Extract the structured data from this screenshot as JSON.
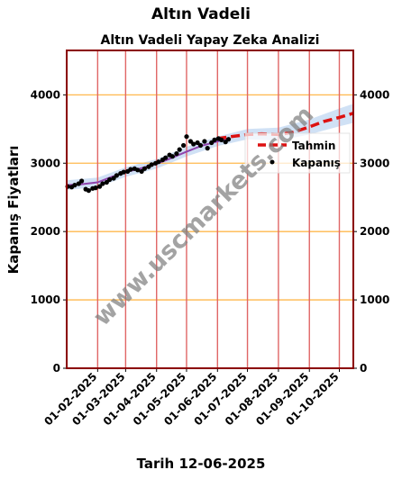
{
  "page": {
    "title": "Altın Vadeli",
    "footer": "Tarih 12-06-2025"
  },
  "watermark": "www.uscmarkets.com",
  "colors": {
    "frame": "#8b0000",
    "vertical_grid": "#e06666",
    "horizontal_grid": "#ffb84d",
    "close_points": "#000000",
    "fit_line": "#8e44ad",
    "band": "#a9c8ec",
    "forecast": "#dd1111"
  },
  "chart_data": {
    "type": "line",
    "title": "Altın Vadeli Yapay Zeka Analizi",
    "xlabel": "",
    "ylabel": "Kapanış Fiyatları",
    "ylim": [
      0,
      4650
    ],
    "y_ticks": [
      0,
      1000,
      2000,
      3000,
      4000
    ],
    "x_range": [
      "2025-01-01",
      "2025-10-15"
    ],
    "x_ticks": [
      "01-02-2025",
      "01-03-2025",
      "01-04-2025",
      "01-05-2025",
      "01-06-2025",
      "01-07-2025",
      "01-08-2025",
      "01-09-2025",
      "01-10-2025"
    ],
    "grid": true,
    "legend_position": "right",
    "legend": [
      "Tahmin",
      "Kapanış"
    ],
    "series": [
      {
        "name": "Kapanış",
        "kind": "scatter",
        "points": [
          [
            "2025-01-02",
            2660
          ],
          [
            "2025-01-06",
            2650
          ],
          [
            "2025-01-09",
            2680
          ],
          [
            "2025-01-13",
            2700
          ],
          [
            "2025-01-16",
            2740
          ],
          [
            "2025-01-20",
            2620
          ],
          [
            "2025-01-23",
            2600
          ],
          [
            "2025-01-27",
            2630
          ],
          [
            "2025-01-30",
            2640
          ],
          [
            "2025-02-03",
            2660
          ],
          [
            "2025-02-06",
            2700
          ],
          [
            "2025-02-10",
            2720
          ],
          [
            "2025-02-13",
            2760
          ],
          [
            "2025-02-17",
            2780
          ],
          [
            "2025-02-20",
            2820
          ],
          [
            "2025-02-24",
            2850
          ],
          [
            "2025-02-27",
            2870
          ],
          [
            "2025-03-03",
            2880
          ],
          [
            "2025-03-06",
            2910
          ],
          [
            "2025-03-10",
            2920
          ],
          [
            "2025-03-13",
            2900
          ],
          [
            "2025-03-17",
            2880
          ],
          [
            "2025-03-20",
            2920
          ],
          [
            "2025-03-24",
            2950
          ],
          [
            "2025-03-27",
            2980
          ],
          [
            "2025-03-31",
            3000
          ],
          [
            "2025-04-03",
            3020
          ],
          [
            "2025-04-07",
            3050
          ],
          [
            "2025-04-10",
            3080
          ],
          [
            "2025-04-14",
            3120
          ],
          [
            "2025-04-17",
            3100
          ],
          [
            "2025-04-21",
            3140
          ],
          [
            "2025-04-24",
            3200
          ],
          [
            "2025-04-28",
            3260
          ],
          [
            "2025-05-01",
            3390
          ],
          [
            "2025-05-05",
            3320
          ],
          [
            "2025-05-08",
            3280
          ],
          [
            "2025-05-12",
            3300
          ],
          [
            "2025-05-15",
            3260
          ],
          [
            "2025-05-19",
            3320
          ],
          [
            "2025-05-22",
            3220
          ],
          [
            "2025-05-26",
            3300
          ],
          [
            "2025-05-29",
            3340
          ],
          [
            "2025-06-02",
            3360
          ],
          [
            "2025-06-05",
            3340
          ],
          [
            "2025-06-09",
            3310
          ],
          [
            "2025-06-12",
            3350
          ]
        ]
      },
      {
        "name": "fit",
        "kind": "line",
        "points": [
          [
            "2025-01-01",
            2680
          ],
          [
            "2025-01-15",
            2690
          ],
          [
            "2025-02-01",
            2720
          ],
          [
            "2025-02-15",
            2800
          ],
          [
            "2025-03-01",
            2870
          ],
          [
            "2025-03-15",
            2920
          ],
          [
            "2025-04-01",
            2990
          ],
          [
            "2025-04-15",
            3070
          ],
          [
            "2025-05-01",
            3170
          ],
          [
            "2025-05-15",
            3250
          ],
          [
            "2025-06-01",
            3320
          ],
          [
            "2025-06-12",
            3360
          ]
        ]
      },
      {
        "name": "Tahmin",
        "kind": "dashed",
        "points": [
          [
            "2025-06-01",
            3360
          ],
          [
            "2025-06-15",
            3390
          ],
          [
            "2025-07-01",
            3420
          ],
          [
            "2025-07-15",
            3430
          ],
          [
            "2025-08-01",
            3420
          ],
          [
            "2025-08-15",
            3450
          ],
          [
            "2025-09-01",
            3530
          ],
          [
            "2025-09-15",
            3610
          ],
          [
            "2025-10-01",
            3670
          ],
          [
            "2025-10-15",
            3730
          ]
        ]
      },
      {
        "name": "band",
        "kind": "band",
        "points": [
          [
            "2025-01-01",
            2610,
            2750
          ],
          [
            "2025-02-01",
            2650,
            2790
          ],
          [
            "2025-03-01",
            2800,
            2940
          ],
          [
            "2025-04-01",
            2920,
            3060
          ],
          [
            "2025-05-01",
            3100,
            3240
          ],
          [
            "2025-06-01",
            3250,
            3390
          ],
          [
            "2025-07-01",
            3350,
            3500
          ],
          [
            "2025-08-01",
            3330,
            3520
          ],
          [
            "2025-09-01",
            3420,
            3640
          ],
          [
            "2025-10-01",
            3540,
            3800
          ],
          [
            "2025-10-15",
            3590,
            3870
          ]
        ]
      }
    ]
  }
}
